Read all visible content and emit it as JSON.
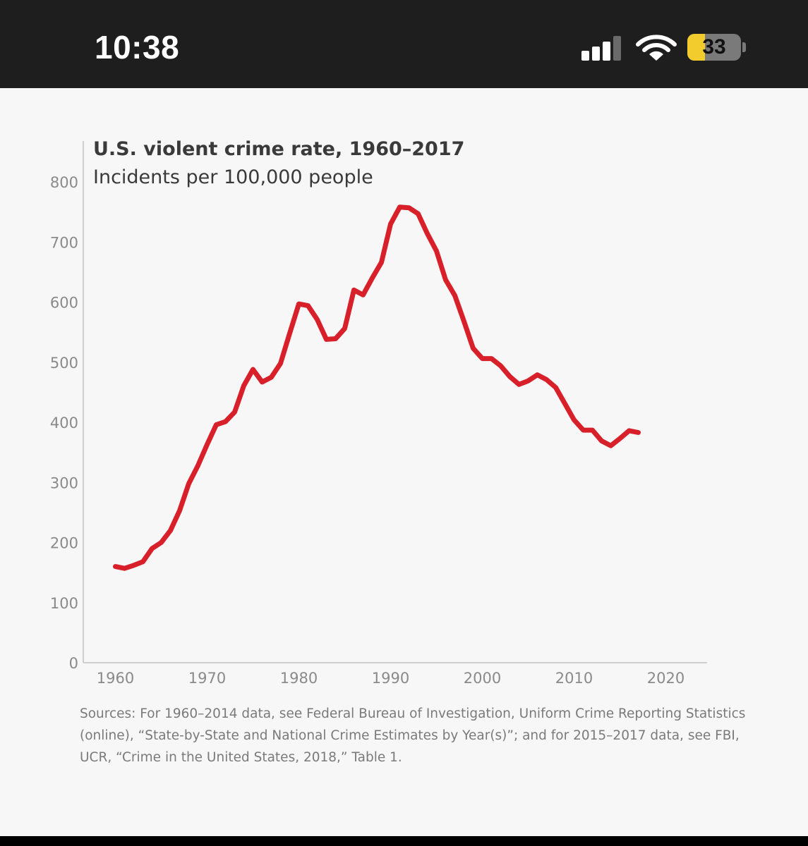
{
  "status_bar": {
    "time": "10:38",
    "battery_level": "33",
    "battery_fraction": 0.33,
    "cellular_bars": 3,
    "cellular_bars_total": 4,
    "icons": [
      "cellular-signal-icon",
      "wifi-icon",
      "battery-icon"
    ],
    "battery_color": "#f2cc2c"
  },
  "chart_data": {
    "type": "line",
    "title": "U.S. violent crime rate, 1960–2017",
    "subtitle": "Incidents per 100,000 people",
    "xlabel": "",
    "ylabel": "",
    "xlim": [
      1956.5,
      2024.5
    ],
    "ylim": [
      0,
      800
    ],
    "x_ticks": [
      1960,
      1970,
      1980,
      1990,
      2000,
      2010,
      2020
    ],
    "y_ticks": [
      0,
      100,
      200,
      300,
      400,
      500,
      600,
      700,
      800
    ],
    "grid": false,
    "line_color": "#d8202a",
    "series": [
      {
        "x": [
          1960,
          1961,
          1962,
          1963,
          1964,
          1965,
          1966,
          1967,
          1968,
          1969,
          1970,
          1971,
          1972,
          1973,
          1974,
          1975,
          1976,
          1977,
          1978,
          1979,
          1980,
          1981,
          1982,
          1983,
          1984,
          1985,
          1986,
          1987,
          1988,
          1989,
          1990,
          1991,
          1992,
          1993,
          1994,
          1995,
          1996,
          1997,
          1998,
          1999,
          2000,
          2001,
          2002,
          2003,
          2004,
          2005,
          2006,
          2007,
          2008,
          2009,
          2010,
          2011,
          2012,
          2013,
          2014,
          2015,
          2016,
          2017
        ],
        "values": [
          160,
          157,
          162,
          168,
          190,
          200,
          220,
          253,
          298,
          328,
          363,
          396,
          401,
          417,
          461,
          488,
          467,
          475,
          498,
          548,
          597,
          594,
          571,
          538,
          539,
          556,
          620,
          612,
          640,
          666,
          730,
          758,
          757,
          747,
          714,
          685,
          637,
          611,
          568,
          523,
          506,
          506,
          494,
          476,
          463,
          469,
          479,
          471,
          458,
          431,
          404,
          387,
          387,
          369,
          361,
          373,
          386,
          383
        ]
      }
    ]
  },
  "sources": {
    "text": "Sources: For 1960–2014 data, see Federal Bureau of Investigation, Uniform Crime Reporting Statistics (online), “State-by-State and National Crime Estimates by Year(s)”; and for 2015–2017 data, see FBI, UCR, “Crime in the United States, 2018,” Table 1."
  }
}
